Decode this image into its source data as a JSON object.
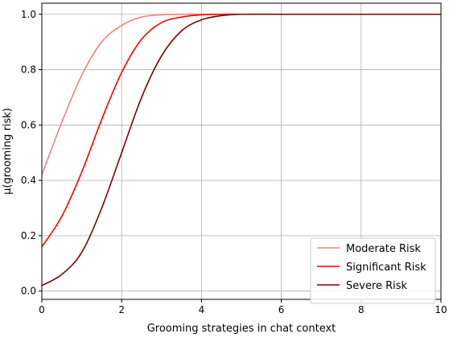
{
  "chart_data": {
    "type": "line",
    "title": "",
    "xlabel": "Grooming strategies in chat context",
    "ylabel": "μ(grooming risk)",
    "xlim": [
      0,
      10
    ],
    "ylim": [
      -0.03,
      1.04
    ],
    "xticks": [
      0,
      2,
      4,
      6,
      8,
      10
    ],
    "yticks": [
      0.0,
      0.2,
      0.4,
      0.6,
      0.8,
      1.0
    ],
    "xtick_labels": [
      "0",
      "2",
      "4",
      "6",
      "8",
      "10"
    ],
    "ytick_labels": [
      "0.0",
      "0.2",
      "0.4",
      "0.6",
      "0.8",
      "1.0"
    ],
    "grid": true,
    "legend_position": "bottom-right",
    "series": [
      {
        "name": "Moderate Risk",
        "color": "#f08080",
        "x": [
          0,
          0.5,
          1,
          1.5,
          2,
          2.5,
          3,
          3.5,
          4,
          5,
          6,
          7,
          8,
          9,
          10
        ],
        "y": [
          0.42,
          0.61,
          0.78,
          0.9,
          0.96,
          0.99,
          0.998,
          1.0,
          1.0,
          1.0,
          1.0,
          1.0,
          1.0,
          1.0,
          1.0
        ]
      },
      {
        "name": "Significant Risk",
        "color": "#ff0000",
        "x": [
          0,
          0.5,
          1,
          1.5,
          2,
          2.5,
          3,
          3.5,
          4,
          4.5,
          5,
          6,
          7,
          8,
          9,
          10
        ],
        "y": [
          0.16,
          0.27,
          0.43,
          0.62,
          0.79,
          0.91,
          0.97,
          0.99,
          0.998,
          1.0,
          1.0,
          1.0,
          1.0,
          1.0,
          1.0,
          1.0
        ]
      },
      {
        "name": "Severe Risk",
        "color": "#800000",
        "x": [
          0,
          0.5,
          1,
          1.5,
          2,
          2.5,
          3,
          3.5,
          4,
          4.5,
          5,
          6,
          7,
          8,
          9,
          10
        ],
        "y": [
          0.02,
          0.06,
          0.14,
          0.3,
          0.5,
          0.7,
          0.85,
          0.94,
          0.98,
          0.995,
          1.0,
          1.0,
          1.0,
          1.0,
          1.0,
          1.0
        ]
      }
    ]
  }
}
